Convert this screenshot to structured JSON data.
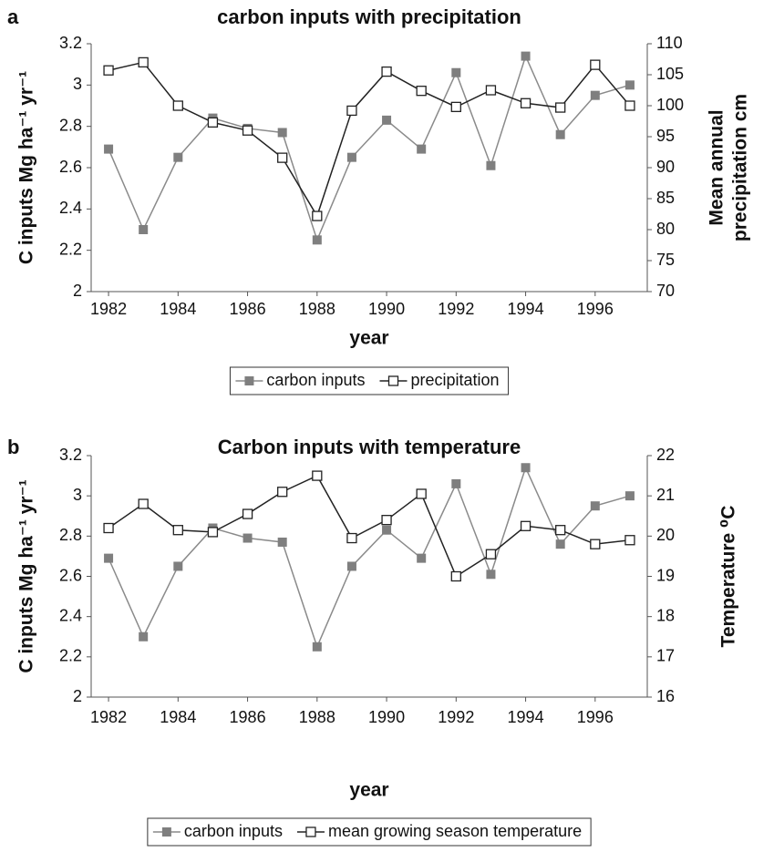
{
  "chart_data": [
    {
      "type": "line",
      "panel_label": "a",
      "title": "carbon inputs with precipitation",
      "x": [
        1982,
        1983,
        1984,
        1985,
        1986,
        1987,
        1988,
        1989,
        1990,
        1991,
        1992,
        1993,
        1994,
        1995,
        1996,
        1997
      ],
      "xlim": [
        1981.5,
        1997.5
      ],
      "xticks": [
        1982,
        1984,
        1986,
        1988,
        1990,
        1992,
        1994,
        1996
      ],
      "ylim": [
        2,
        3.2
      ],
      "yticks": [
        2,
        2.2,
        2.4,
        2.6,
        2.8,
        3,
        3.2
      ],
      "y2lim": [
        70,
        110
      ],
      "y2ticks": [
        70,
        75,
        80,
        85,
        90,
        95,
        100,
        105,
        110
      ],
      "x_label": "year",
      "y_label": "C inputs Mg ha⁻¹ yr⁻¹",
      "y2_label": [
        "Mean annual",
        "precipitation cm"
      ],
      "legend": "bottom",
      "series": [
        {
          "name": "carbon inputs",
          "color": "#8a8a8a",
          "marker_fill": "#7f7f7f",
          "values": [
            2.69,
            2.3,
            2.65,
            2.84,
            2.79,
            2.77,
            2.25,
            2.65,
            2.83,
            2.69,
            3.06,
            2.61,
            3.14,
            2.76,
            2.95,
            3.0
          ]
        },
        {
          "name": "precipitation",
          "color": "#222222",
          "marker_fill": "#ffffff",
          "axis": "y2",
          "values": [
            105.7,
            107,
            100,
            97.3,
            96,
            91.6,
            82.2,
            99.2,
            105.5,
            102.4,
            99.8,
            102.5,
            100.4,
            99.7,
            106.6,
            100
          ]
        }
      ]
    },
    {
      "type": "line",
      "panel_label": "b",
      "title": "Carbon inputs with temperature",
      "x": [
        1982,
        1983,
        1984,
        1985,
        1986,
        1987,
        1988,
        1989,
        1990,
        1991,
        1992,
        1993,
        1994,
        1995,
        1996,
        1997
      ],
      "xlim": [
        1981.5,
        1997.5
      ],
      "xticks": [
        1982,
        1984,
        1986,
        1988,
        1990,
        1992,
        1994,
        1996
      ],
      "ylim": [
        2,
        3.2
      ],
      "yticks": [
        2,
        2.2,
        2.4,
        2.6,
        2.8,
        3,
        3.2
      ],
      "y2lim": [
        16,
        22
      ],
      "y2ticks": [
        16,
        17,
        18,
        19,
        20,
        21,
        22
      ],
      "x_label": "year",
      "y_label": "C inputs Mg ha⁻¹ yr⁻¹",
      "y2_label": [
        "Temperature ⁰C"
      ],
      "legend": "bottom",
      "series": [
        {
          "name": "carbon inputs",
          "color": "#8a8a8a",
          "marker_fill": "#7f7f7f",
          "values": [
            2.69,
            2.3,
            2.65,
            2.84,
            2.79,
            2.77,
            2.25,
            2.65,
            2.83,
            2.69,
            3.06,
            2.61,
            3.14,
            2.76,
            2.95,
            3.0
          ]
        },
        {
          "name": "mean growing season temperature",
          "color": "#222222",
          "marker_fill": "#ffffff",
          "axis": "y2",
          "values": [
            20.2,
            20.8,
            20.15,
            20.1,
            20.55,
            21.1,
            21.5,
            19.95,
            20.4,
            21.05,
            19.0,
            19.55,
            20.25,
            20.15,
            19.8,
            19.9
          ]
        }
      ]
    }
  ]
}
